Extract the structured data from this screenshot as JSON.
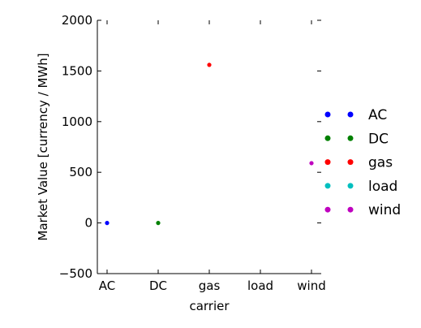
{
  "chart_data": {
    "type": "scatter",
    "xlabel": "carrier",
    "ylabel": "Market Value [currency / MWh]",
    "categories": [
      "AC",
      "DC",
      "gas",
      "load",
      "wind"
    ],
    "ylim": [
      -500,
      2000
    ],
    "yticks": [
      -500,
      0,
      500,
      1000,
      1500,
      2000
    ],
    "yticklabels": [
      "−500",
      "0",
      "500",
      "1000",
      "1500",
      "2000"
    ],
    "grid": false,
    "legend_position": "right, outside plot",
    "series": [
      {
        "name": "AC",
        "color": "#0000ff",
        "x": "AC",
        "y": 0
      },
      {
        "name": "DC",
        "color": "#008000",
        "x": "DC",
        "y": 0
      },
      {
        "name": "gas",
        "color": "#ff0000",
        "x": "gas",
        "y": 1560
      },
      {
        "name": "load",
        "color": "#00bfbf",
        "x": "load",
        "y": null
      },
      {
        "name": "wind",
        "color": "#bf00bf",
        "x": "wind",
        "y": 590
      }
    ]
  }
}
